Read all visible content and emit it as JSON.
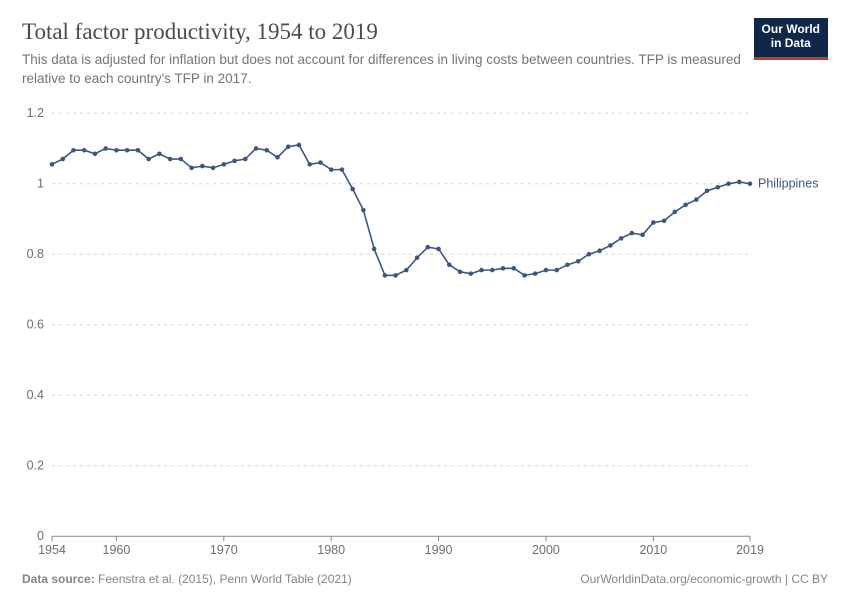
{
  "header": {
    "title": "Total factor productivity, 1954 to 2019",
    "subtitle": "This data is adjusted for inflation but does not account for differences in living costs between countries. TFP is measured relative to each country's TFP in 2017.",
    "logo_line1": "Our World",
    "logo_line2": "in Data"
  },
  "chart": {
    "type": "line",
    "xlim": [
      1954,
      2019
    ],
    "ylim": [
      0,
      1.2
    ],
    "xticks": [
      1954,
      1960,
      1970,
      1980,
      1990,
      2000,
      2010,
      2019
    ],
    "yticks": [
      0,
      0.2,
      0.4,
      0.6,
      0.8,
      1,
      1.2
    ],
    "grid_color": "#d6d6d6",
    "background_color": "#ffffff",
    "series": [
      {
        "label": "Philippines",
        "color": "#3f577f",
        "marker": "circle",
        "marker_size": 2.3,
        "line_width": 1.6,
        "x": [
          1954,
          1955,
          1956,
          1957,
          1958,
          1959,
          1960,
          1961,
          1962,
          1963,
          1964,
          1965,
          1966,
          1967,
          1968,
          1969,
          1970,
          1971,
          1972,
          1973,
          1974,
          1975,
          1976,
          1977,
          1978,
          1979,
          1980,
          1981,
          1982,
          1983,
          1984,
          1985,
          1986,
          1987,
          1988,
          1989,
          1990,
          1991,
          1992,
          1993,
          1994,
          1995,
          1996,
          1997,
          1998,
          1999,
          2000,
          2001,
          2002,
          2003,
          2004,
          2005,
          2006,
          2007,
          2008,
          2009,
          2010,
          2011,
          2012,
          2013,
          2014,
          2015,
          2016,
          2017,
          2018,
          2019
        ],
        "y": [
          1.055,
          1.07,
          1.095,
          1.095,
          1.085,
          1.1,
          1.095,
          1.095,
          1.095,
          1.07,
          1.085,
          1.07,
          1.07,
          1.045,
          1.05,
          1.045,
          1.055,
          1.065,
          1.07,
          1.1,
          1.095,
          1.075,
          1.105,
          1.11,
          1.055,
          1.06,
          1.04,
          1.04,
          0.985,
          0.925,
          0.815,
          0.74,
          0.74,
          0.755,
          0.79,
          0.82,
          0.815,
          0.77,
          0.75,
          0.745,
          0.755,
          0.755,
          0.76,
          0.76,
          0.74,
          0.745,
          0.755,
          0.755,
          0.77,
          0.78,
          0.8,
          0.81,
          0.825,
          0.845,
          0.86,
          0.855,
          0.89,
          0.895,
          0.92,
          0.94,
          0.955,
          0.98,
          0.99,
          1.0,
          1.005,
          1.0
        ]
      }
    ]
  },
  "footer": {
    "source_label": "Data source:",
    "source_text": "Feenstra et al. (2015), Penn World Table (2021)",
    "link_text": "OurWorldinData.org/economic-growth",
    "license": "CC BY"
  }
}
